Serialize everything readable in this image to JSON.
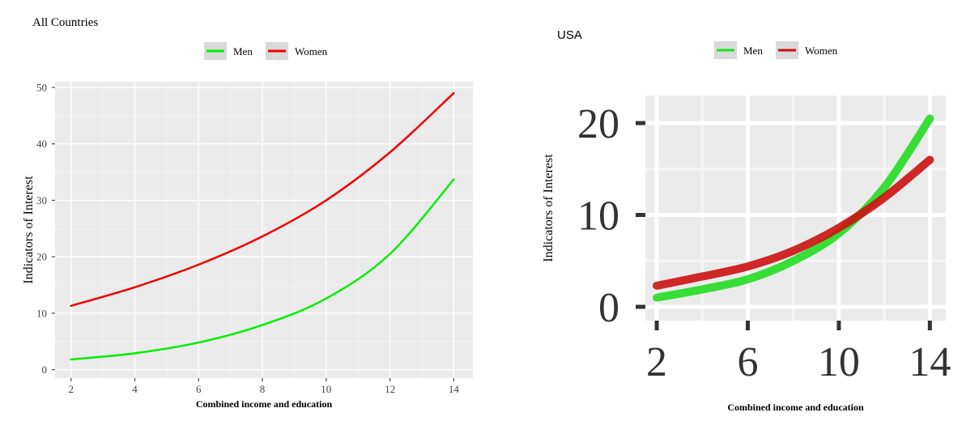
{
  "chart_data": [
    {
      "type": "line",
      "title": "All Countries",
      "xlabel": "Combined income and education",
      "ylabel": "Indicators of Interest",
      "xlim": [
        1.5,
        14.6
      ],
      "ylim": [
        -1.5,
        51
      ],
      "xticks": [
        2,
        4,
        6,
        8,
        10,
        12,
        14
      ],
      "yticks": [
        0,
        10,
        20,
        30,
        40,
        50
      ],
      "grid": true,
      "legend": "top-center",
      "x": [
        2,
        4,
        6,
        8,
        10,
        12,
        14
      ],
      "series": [
        {
          "name": "Men",
          "color": "#00ee00",
          "values": [
            1.8,
            2.9,
            4.8,
            7.9,
            12.6,
            20.5,
            33.7
          ]
        },
        {
          "name": "Women",
          "color": "#ee0000",
          "values": [
            11.3,
            14.6,
            18.6,
            23.6,
            30.0,
            38.5,
            49.0
          ]
        }
      ]
    },
    {
      "type": "line",
      "title": "USA",
      "xlabel": "Combined income and education",
      "ylabel": "Indicators of Interest",
      "xlim": [
        1.5,
        14.7
      ],
      "ylim": [
        -1.5,
        23
      ],
      "xticks": [
        2,
        6,
        10,
        14
      ],
      "yticks": [
        0,
        10,
        20
      ],
      "grid": true,
      "legend": "top-center",
      "x": [
        2,
        4,
        6,
        8,
        10,
        12,
        14
      ],
      "series": [
        {
          "name": "Men",
          "color": "#22dd22",
          "values": [
            1.0,
            1.9,
            3.0,
            5.0,
            8.0,
            13.0,
            20.5
          ]
        },
        {
          "name": "Women",
          "color": "#cc1111",
          "values": [
            2.3,
            3.3,
            4.4,
            6.1,
            8.6,
            11.9,
            16.0
          ]
        }
      ]
    }
  ]
}
